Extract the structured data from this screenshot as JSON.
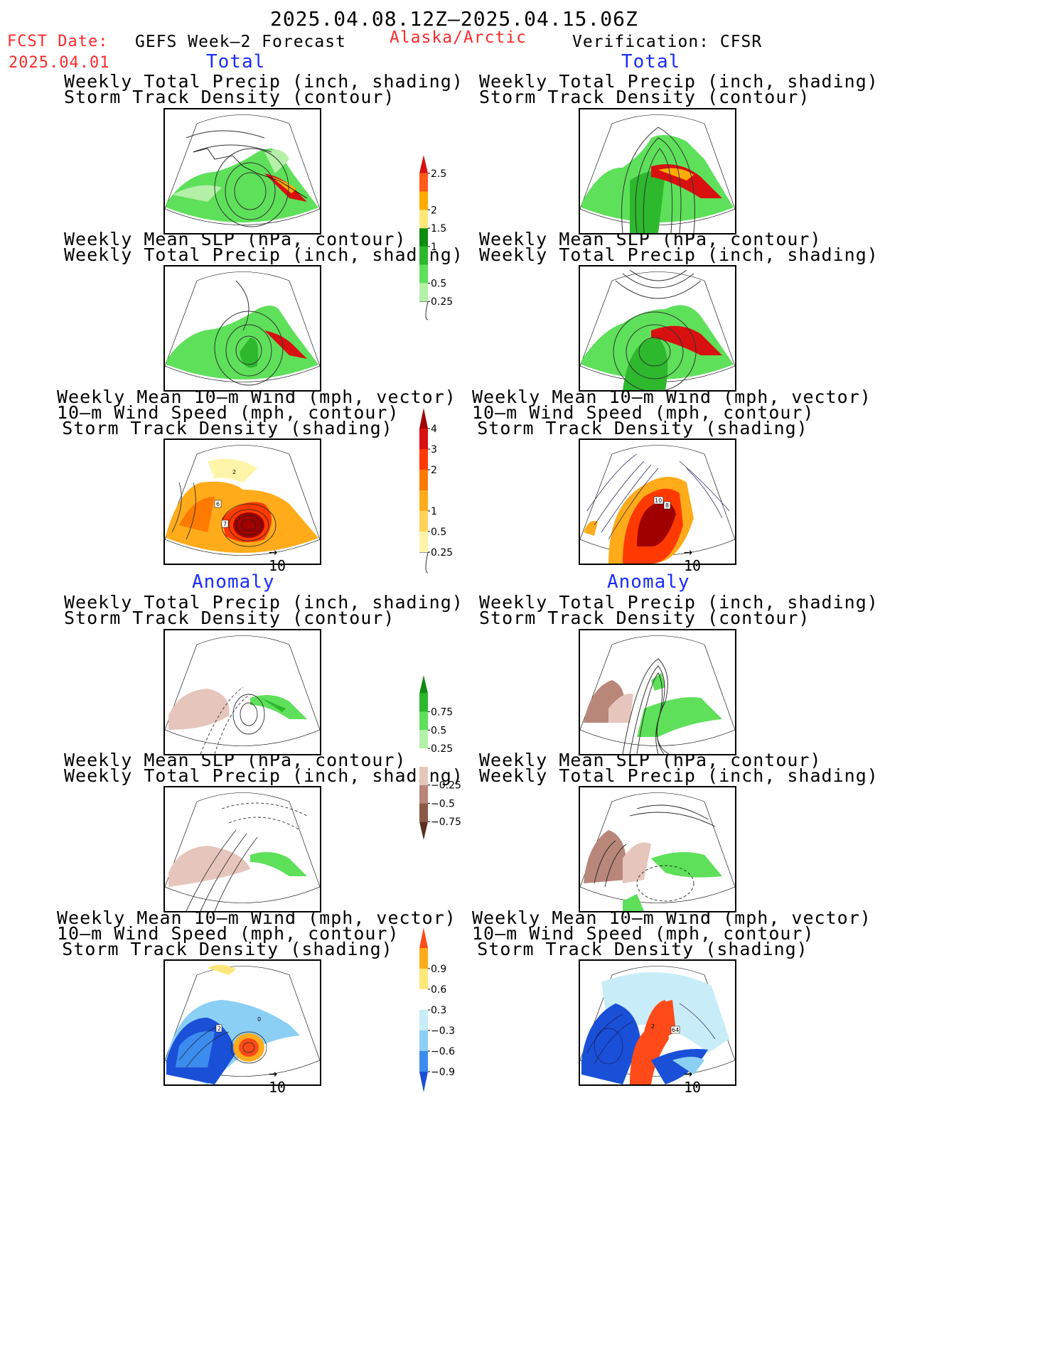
{
  "header": {
    "date_range": "2025.04.08.12Z–2025.04.15.06Z",
    "fcst_label": "FCST Date:",
    "fcst_date": "2025.04.01",
    "product": "GEFS Week–2 Forecast",
    "region": "Alaska/Arctic",
    "verification": "Verification: CFSR"
  },
  "sections": {
    "total": "Total",
    "anomaly": "Anomaly"
  },
  "panel_titles": {
    "precip_track": [
      "Weekly Total Precip (inch, shading)",
      "Storm Track Density (contour)"
    ],
    "slp_precip": [
      "Weekly Mean SLP (hPa, contour)",
      "Weekly Total Precip (inch, shading)"
    ],
    "wind_track": [
      "Weekly Mean 10–m Wind (mph, vector)",
      "10–m Wind Speed (mph, contour)",
      "Storm Track Density (shading)"
    ]
  },
  "vector_ref": "10",
  "colorbars": {
    "precip_total": {
      "colors": [
        "#ffffff",
        "#b4f0a8",
        "#5ee05a",
        "#2db82d",
        "#0f8c0f",
        "#ffe77a",
        "#ffab00",
        "#ff5a1a",
        "#d81010"
      ],
      "labels": [
        "0.25",
        "0.5",
        "1",
        "1.5",
        "2",
        "2.5"
      ]
    },
    "track_total": {
      "colors": [
        "#ffffff",
        "#fff5aa",
        "#ffd35a",
        "#ffab1a",
        "#ff7a00",
        "#ff3a00",
        "#d81010",
        "#a00000"
      ],
      "labels": [
        "0.25",
        "0.5",
        "1",
        "2",
        "3",
        "4"
      ]
    },
    "precip_anom": {
      "colors": [
        "#5a3020",
        "#8a5a48",
        "#b8877a",
        "#e6c6bc",
        "#ffffff",
        "#b4f0a8",
        "#5ee05a",
        "#2db82d",
        "#0f8c0f"
      ],
      "labels": [
        "−0.75",
        "−0.5",
        "−0.25",
        "0.25",
        "0.5",
        "0.75"
      ]
    },
    "track_anom": {
      "colors": [
        "#1a50d8",
        "#3c8cf0",
        "#8ccff5",
        "#c8ecf8",
        "#ffffff",
        "#ffe77a",
        "#ffab1a",
        "#ff4a1a"
      ],
      "labels": [
        "−0.9",
        "−0.6",
        "−0.3",
        "0.3",
        "0.6",
        "0.9"
      ]
    }
  },
  "contour_labels": {
    "fcst_wind_total": [
      "6",
      "7",
      "2"
    ],
    "cfsr_wind_total": [
      "10",
      "8"
    ],
    "fcst_wind_anom": [
      "2",
      "0"
    ],
    "cfsr_wind_anom": [
      "64",
      "2"
    ]
  }
}
